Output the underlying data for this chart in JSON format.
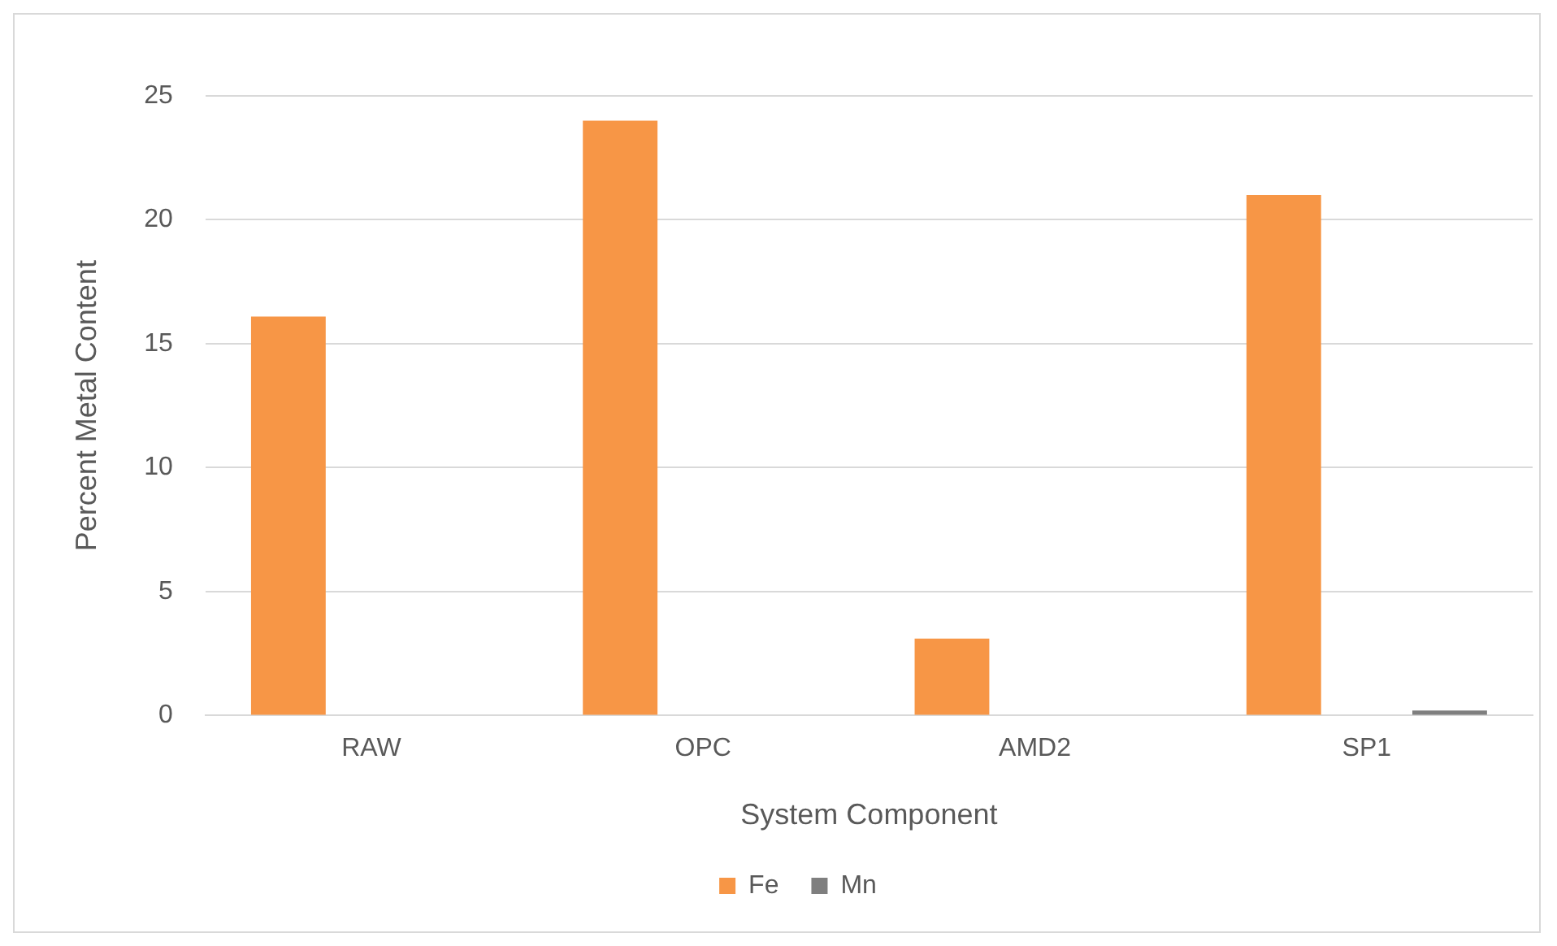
{
  "chart_data": {
    "type": "bar",
    "xlabel": "System Component",
    "ylabel": "Percent Metal Content",
    "categories": [
      "RAW",
      "OPC",
      "AMD2",
      "SP1"
    ],
    "series": [
      {
        "name": "Fe",
        "color": "#f79646",
        "values": [
          16.1,
          24.0,
          3.1,
          21.0
        ]
      },
      {
        "name": "Mn",
        "color": "#7f7f7f",
        "values": [
          0,
          0,
          0,
          0.2
        ]
      }
    ],
    "ylim": [
      0,
      25
    ],
    "yticks": [
      0,
      5,
      10,
      15,
      20,
      25
    ],
    "grid": "y",
    "legend": "bottom"
  }
}
